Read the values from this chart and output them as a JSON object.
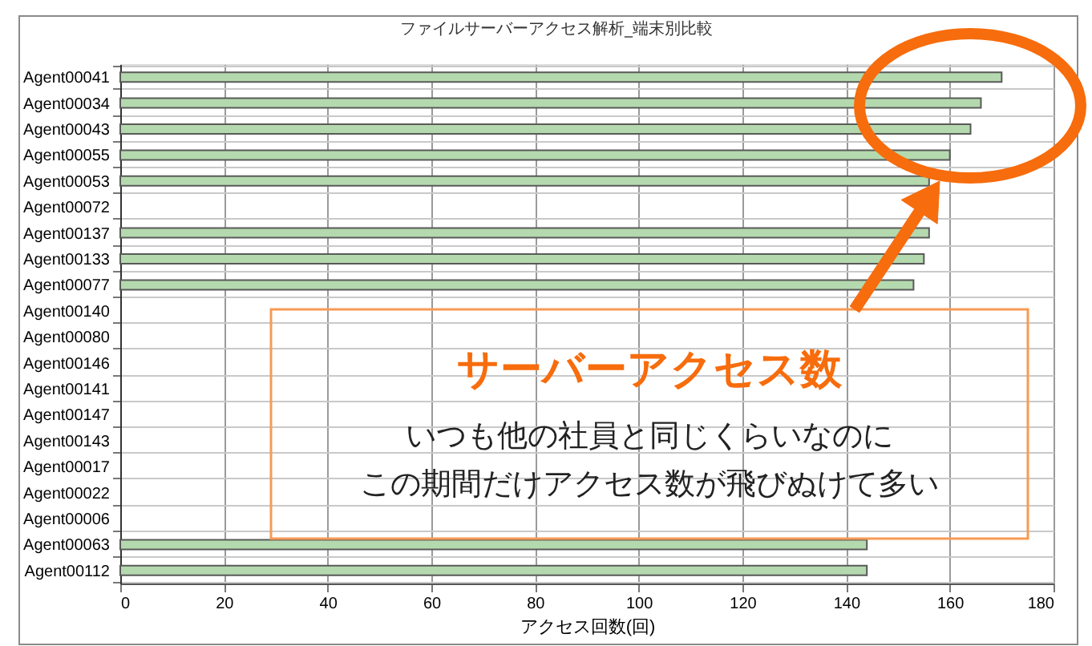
{
  "chart_data": {
    "type": "bar",
    "orientation": "horizontal",
    "title": "ファイルサーバーアクセス解析_端末別比較",
    "xlabel": "アクセス回数(回)",
    "categories": [
      "Agent00041",
      "Agent00034",
      "Agent00043",
      "Agent00055",
      "Agent00053",
      "Agent00072",
      "Agent00137",
      "Agent00133",
      "Agent00077",
      "Agent00140",
      "Agent00080",
      "Agent00146",
      "Agent00141",
      "Agent00147",
      "Agent00143",
      "Agent00017",
      "Agent00022",
      "Agent00006",
      "Agent00063",
      "Agent00112"
    ],
    "values": [
      170,
      166,
      164,
      160,
      156,
      null,
      156,
      155,
      153,
      null,
      null,
      null,
      null,
      null,
      null,
      null,
      null,
      null,
      144,
      144
    ],
    "color": "#b4d9ae",
    "xlim": [
      0,
      180
    ],
    "xticks": [
      0,
      20,
      40,
      60,
      80,
      100,
      120,
      140,
      160,
      180
    ],
    "grid": true,
    "annotations": [
      "サーバーアクセス数",
      "いつも他の社員と同じくらいなのに",
      "この期間だけアクセス数が飛びぬけて多い"
    ]
  }
}
